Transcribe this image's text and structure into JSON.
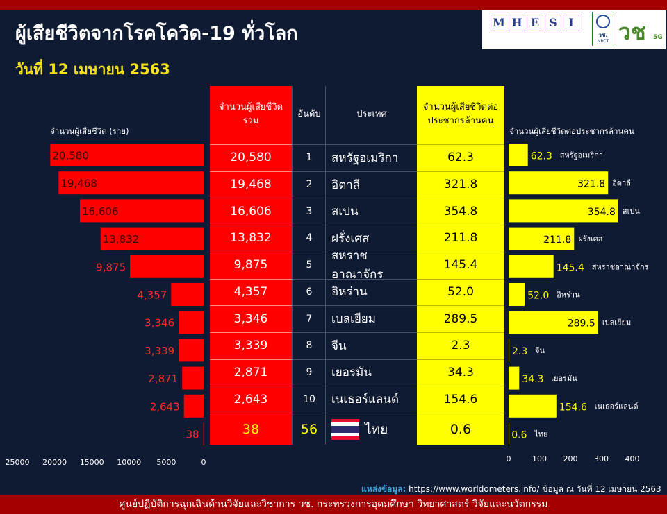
{
  "header": {
    "title": "ผู้เสียชีวิตจากโรคโควิด-19 ทั่วโลก",
    "date": "วันที่ 12 เมษายน 2563"
  },
  "logos": {
    "mhesi_letters": [
      "M",
      "H",
      "E",
      "S",
      "I"
    ],
    "nrct_text": "วช.",
    "nrct_sub": "NRCT",
    "vc_text": "วช",
    "vc_suffix": "5G"
  },
  "table": {
    "headers": {
      "total": "จำนวนผู้เสียชีวิตรวม",
      "rank": "อันดับ",
      "country": "ประเทศ",
      "per_million": "จำนวนผู้เสียชีวิตต่อประชากรล้านคน"
    },
    "rows": [
      {
        "total": "20,580",
        "rank": "1",
        "country": "สหรัฐอเมริกา",
        "per_million": "62.3"
      },
      {
        "total": "19,468",
        "rank": "2",
        "country": "อิตาลี",
        "per_million": "321.8"
      },
      {
        "total": "16,606",
        "rank": "3",
        "country": "สเปน",
        "per_million": "354.8"
      },
      {
        "total": "13,832",
        "rank": "4",
        "country": "ฝรั่งเศส",
        "per_million": "211.8"
      },
      {
        "total": "9,875",
        "rank": "5",
        "country": "สหราชอาณาจักร",
        "per_million": "145.4"
      },
      {
        "total": "4,357",
        "rank": "6",
        "country": "อิหร่าน",
        "per_million": "52.0"
      },
      {
        "total": "3,346",
        "rank": "7",
        "country": "เบลเยียม",
        "per_million": "289.5"
      },
      {
        "total": "3,339",
        "rank": "8",
        "country": "จีน",
        "per_million": "2.3"
      },
      {
        "total": "2,871",
        "rank": "9",
        "country": "เยอรมัน",
        "per_million": "34.3"
      },
      {
        "total": "2,643",
        "rank": "10",
        "country": "เนเธอร์แลนด์",
        "per_million": "154.6"
      }
    ],
    "thailand": {
      "total": "38",
      "rank": "56",
      "country": "ไทย",
      "per_million": "0.6"
    }
  },
  "chart_data": [
    {
      "type": "bar",
      "orientation": "horizontal",
      "direction": "right-to-left",
      "title": "",
      "xlabel": "จำนวนผู้เสียชีวิต (ราย)",
      "categories": [
        "สหรัฐอเมริกา",
        "อิตาลี",
        "สเปน",
        "ฝรั่งเศส",
        "สหราชอาณาจักร",
        "อิหร่าน",
        "เบลเยียม",
        "จีน",
        "เยอรมัน",
        "เนเธอร์แลนด์",
        "ไทย"
      ],
      "values": [
        20580,
        19468,
        16606,
        13832,
        9875,
        4357,
        3346,
        3339,
        2871,
        2643,
        38
      ],
      "value_labels": [
        "20,580",
        "19,468",
        "16,606",
        "13,832",
        "9,875",
        "4,357",
        "3,346",
        "3,339",
        "2,871",
        "2,643",
        "38"
      ],
      "xlim": [
        0,
        25000
      ],
      "ticks": [
        25000,
        20000,
        15000,
        10000,
        5000,
        0
      ],
      "color": "#ff0000",
      "grid": false
    },
    {
      "type": "bar",
      "orientation": "horizontal",
      "title": "",
      "xlabel": "จำนวนผู้เสียชีวิตต่อประชากรล้านคน",
      "categories": [
        "สหรัฐอเมริกา",
        "อิตาลี",
        "สเปน",
        "ฝรั่งเศส",
        "สหราชอาณาจักร",
        "อิหร่าน",
        "เบลเยียม",
        "จีน",
        "เยอรมัน",
        "เนเธอร์แลนด์",
        "ไทย"
      ],
      "values": [
        62.3,
        321.8,
        354.8,
        211.8,
        145.4,
        52.0,
        289.5,
        2.3,
        34.3,
        154.6,
        0.6
      ],
      "value_labels": [
        "62.3",
        "321.8",
        "354.8",
        "211.8",
        "145.4",
        "52.0",
        "289.5",
        "2.3",
        "34.3",
        "154.6",
        "0.6"
      ],
      "xlim": [
        0,
        400
      ],
      "ticks": [
        0,
        100,
        200,
        300,
        400
      ],
      "color": "#ffff00",
      "grid": false
    }
  ],
  "source": {
    "label": "แหล่งข้อมูล:",
    "text": "https://www.worldometers.info/ ข้อมูล ณ วันที่ 12 เมษายน 2563"
  },
  "footer": {
    "text": "ศูนย์ปฏิบัติการฉุกเฉินด้านวิจัยและวิชาการ   วช.   กระทรวงการอุดมศึกษา วิทยาศาสตร์ วิจัยและนวัตกรรม"
  },
  "colors": {
    "background": "#0f1a33",
    "red": "#ff0000",
    "yellow": "#ffff00",
    "band": "#a50000",
    "title_yellow": "#f4e21a"
  }
}
